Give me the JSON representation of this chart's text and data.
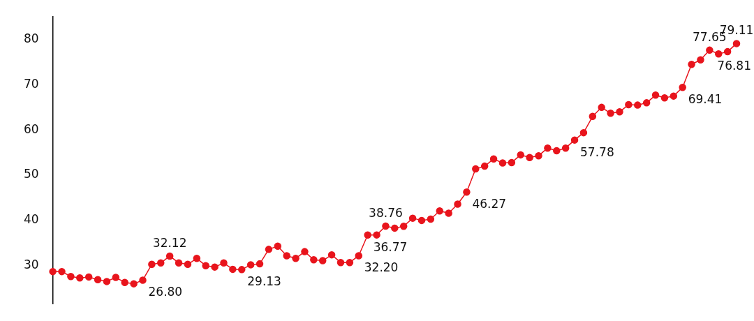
{
  "chart_data": {
    "type": "line",
    "categories": [
      null,
      null,
      null,
      null,
      null,
      null,
      null,
      null,
      null,
      null,
      null,
      null,
      null,
      null,
      null,
      null,
      null,
      null,
      null,
      null,
      null,
      null,
      null,
      null,
      null,
      null,
      null,
      null,
      null,
      null,
      null,
      null,
      null,
      null,
      null,
      null,
      null,
      null,
      null,
      null,
      null,
      null,
      null,
      null,
      null,
      null,
      null,
      null,
      null,
      null,
      null,
      null,
      null,
      null,
      null,
      null,
      null,
      null,
      null,
      null,
      null,
      null,
      null,
      null,
      null,
      null,
      null,
      null,
      null,
      null,
      null,
      null,
      null,
      null,
      null,
      null,
      null
    ],
    "series": [
      {
        "color": "#e8141c",
        "values": [
          28.7,
          28.7,
          27.6,
          27.3,
          27.5,
          26.9,
          26.5,
          27.4,
          26.3,
          26.0,
          26.8,
          30.3,
          30.6,
          32.12,
          30.6,
          30.3,
          31.6,
          30.0,
          29.7,
          30.6,
          29.2,
          29.13,
          30.2,
          30.4,
          33.6,
          34.3,
          32.2,
          31.6,
          33.1,
          31.3,
          31.1,
          32.4,
          30.7,
          30.7,
          32.2,
          36.77,
          36.8,
          38.76,
          38.3,
          38.7,
          40.5,
          40.0,
          40.3,
          42.1,
          41.6,
          43.6,
          46.27,
          51.4,
          52.0,
          53.6,
          52.7,
          52.8,
          54.5,
          53.9,
          54.3,
          56.0,
          55.4,
          56.0,
          57.78,
          59.4,
          63.0,
          65.0,
          63.7,
          64.0,
          65.6,
          65.5,
          66.0,
          67.7,
          67.1,
          67.5,
          69.41,
          74.5,
          75.5,
          77.65,
          76.81,
          77.3,
          79.11
        ],
        "value_labels": [
          null,
          null,
          null,
          null,
          null,
          null,
          null,
          null,
          null,
          null,
          "26.80",
          null,
          null,
          "32.12",
          null,
          null,
          null,
          null,
          null,
          null,
          null,
          "29.13",
          null,
          null,
          null,
          null,
          null,
          null,
          null,
          null,
          null,
          null,
          null,
          null,
          "32.20",
          "36.77",
          null,
          "38.76",
          null,
          null,
          null,
          null,
          null,
          null,
          null,
          null,
          "46.27",
          null,
          null,
          null,
          null,
          null,
          null,
          null,
          null,
          null,
          null,
          null,
          "57.78",
          null,
          null,
          null,
          null,
          null,
          null,
          null,
          null,
          null,
          null,
          null,
          "69.41",
          null,
          null,
          "77.65",
          "76.81",
          null,
          "79.11"
        ]
      }
    ],
    "ylim": [
      21.5,
      85
    ],
    "yticks": [
      30,
      40,
      50,
      60,
      70,
      80
    ],
    "grid": false,
    "legend": false,
    "marker": "circle",
    "line_style": "solid"
  }
}
